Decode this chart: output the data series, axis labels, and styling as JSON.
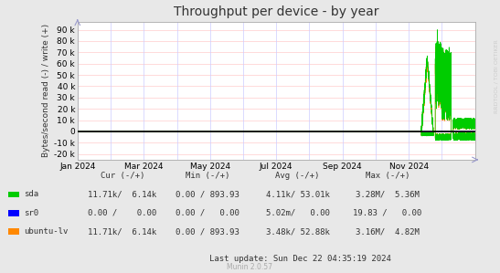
{
  "title": "Throughput per device - by year",
  "ylabel": "Bytes/second read (-) / write (+)",
  "watermark": "Munin 2.0.57",
  "rrdtool_label": "RRDTOOL / TOBI OETIKER",
  "bg_color": "#e8e8e8",
  "plot_bg_color": "#ffffff",
  "grid_color_h": "#ffcccc",
  "grid_color_v": "#ccccff",
  "zero_line_color": "#000000",
  "border_color": "#aaaaaa",
  "ylim": [
    -25000,
    97000
  ],
  "yticks": [
    -20000,
    -10000,
    0,
    10000,
    20000,
    30000,
    40000,
    50000,
    60000,
    70000,
    80000,
    90000
  ],
  "ytick_labels": [
    "-20 k",
    "-10 k",
    "0",
    "10 k",
    "20 k",
    "30 k",
    "40 k",
    "50 k",
    "60 k",
    "70 k",
    "80 k",
    "90 k"
  ],
  "xtick_labels": [
    "Jan 2024",
    "Mar 2024",
    "May 2024",
    "Jul 2024",
    "Sep 2024",
    "Nov 2024"
  ],
  "legend_entries": [
    {
      "label": "sda",
      "color": "#00cc00"
    },
    {
      "label": "sr0",
      "color": "#0000ff"
    },
    {
      "label": "ubuntu-lv",
      "color": "#ff8800"
    }
  ],
  "table_col1_header": "Cur (-/+)",
  "table_col2_header": "Min (-/+)",
  "table_col3_header": "Avg (-/+)",
  "table_col4_header": "Max (-/+)",
  "table_rows": [
    {
      "name": "sda",
      "cur": "11.71k/  6.14k",
      "min": "0.00 / 893.93",
      "avg": "4.11k/ 53.01k",
      "max": "3.28M/  5.36M"
    },
    {
      "name": "sr0",
      "cur": "0.00 /    0.00",
      "min": "0.00 /   0.00",
      "avg": "5.02m/   0.00",
      "max": "19.83 /   0.00"
    },
    {
      "name": "ubuntu-lv",
      "cur": "11.71k/  6.14k",
      "min": "0.00 / 893.93",
      "avg": "3.48k/ 52.88k",
      "max": "3.16M/  4.82M"
    }
  ],
  "last_update": "Last update: Sun Dec 22 04:35:19 2024"
}
